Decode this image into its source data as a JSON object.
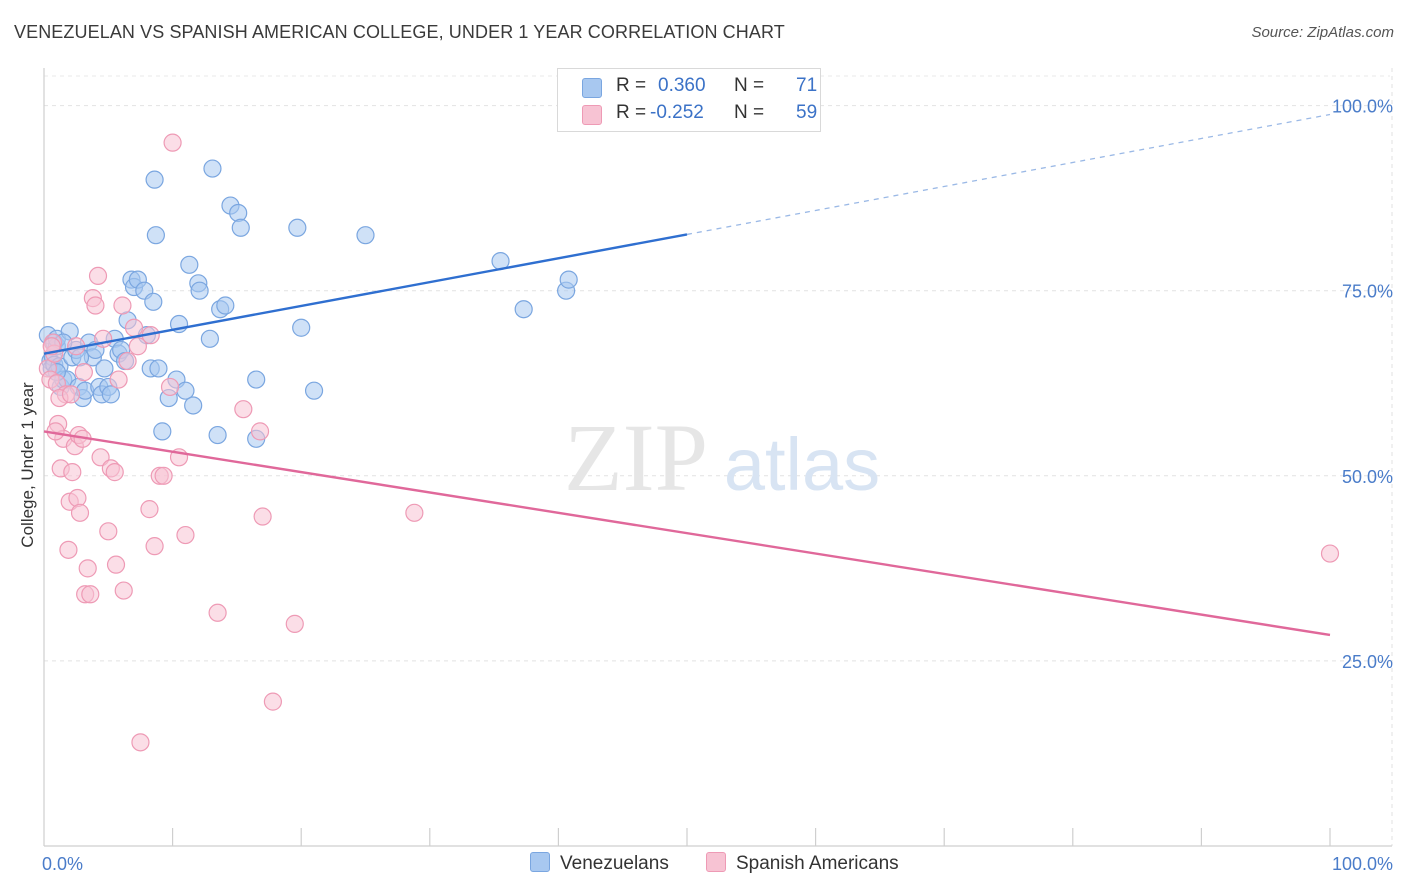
{
  "header": {
    "title": "VENEZUELAN VS SPANISH AMERICAN COLLEGE, UNDER 1 YEAR CORRELATION CHART",
    "source": "Source: ZipAtlas.com"
  },
  "watermark": {
    "zip": "ZIP",
    "atlas": "atlas"
  },
  "legend": {
    "rows": [
      {
        "r_label": "R =",
        "r_value": "0.360",
        "n_label": "N =",
        "n_value": "71",
        "color": "#a8c8f0",
        "border": "#7aa6e0"
      },
      {
        "r_label": "R =",
        "r_value": "-0.252",
        "n_label": "N =",
        "n_value": "59",
        "color": "#f7c3d3",
        "border": "#ee9ab5"
      }
    ]
  },
  "bottom_legend": {
    "items": [
      {
        "label": "Venezuelans",
        "color": "#a8c8f0",
        "border": "#7aa6e0"
      },
      {
        "label": "Spanish Americans",
        "color": "#f7c3d3",
        "border": "#ee9ab5"
      }
    ]
  },
  "chart_data": {
    "type": "scatter",
    "title": "VENEZUELAN VS SPANISH AMERICAN COLLEGE, UNDER 1 YEAR CORRELATION CHART",
    "xlabel": "",
    "ylabel": "College, Under 1 year",
    "xlim": [
      0,
      100
    ],
    "ylim": [
      0,
      104
    ],
    "x_tick_labels": [
      "0.0%",
      "100.0%"
    ],
    "y_ticks": [
      25,
      50,
      75,
      100
    ],
    "y_tick_labels": [
      "25.0%",
      "50.0%",
      "75.0%",
      "100.0%"
    ],
    "grid": true,
    "series": [
      {
        "name": "Venezuelans",
        "color": "#7aa6e0",
        "fill": "#a8c8f0",
        "line_color": "#2f6fd0",
        "trend": {
          "x0": 0,
          "y0": 66.5,
          "x1": 50,
          "y1": 82.6,
          "dash_to_x": 100,
          "dash_to_y": 98.8
        },
        "points": [
          [
            0.3,
            69
          ],
          [
            0.5,
            65.5
          ],
          [
            0.6,
            64.5
          ],
          [
            0.7,
            66
          ],
          [
            0.8,
            68
          ],
          [
            0.8,
            65
          ],
          [
            1.0,
            67.5
          ],
          [
            1.0,
            68.5
          ],
          [
            1.2,
            64.8
          ],
          [
            1.3,
            62
          ],
          [
            1.5,
            63
          ],
          [
            1.8,
            63
          ],
          [
            2.0,
            69.5
          ],
          [
            2.2,
            66
          ],
          [
            2.5,
            67
          ],
          [
            2.7,
            62
          ],
          [
            3.0,
            60.5
          ],
          [
            3.2,
            61.5
          ],
          [
            3.5,
            68
          ],
          [
            3.8,
            66
          ],
          [
            4.0,
            67
          ],
          [
            4.3,
            62
          ],
          [
            4.5,
            61
          ],
          [
            4.7,
            64.5
          ],
          [
            5.0,
            62
          ],
          [
            5.2,
            61
          ],
          [
            5.5,
            68.5
          ],
          [
            5.8,
            66.5
          ],
          [
            6.0,
            67
          ],
          [
            6.3,
            65.5
          ],
          [
            6.5,
            71
          ],
          [
            6.8,
            76.5
          ],
          [
            7.0,
            75.5
          ],
          [
            7.3,
            76.5
          ],
          [
            7.8,
            75
          ],
          [
            8.0,
            69
          ],
          [
            8.3,
            64.5
          ],
          [
            8.5,
            73.5
          ],
          [
            8.6,
            90
          ],
          [
            8.7,
            82.5
          ],
          [
            8.9,
            64.5
          ],
          [
            9.2,
            56
          ],
          [
            9.7,
            60.5
          ],
          [
            10.3,
            63
          ],
          [
            10.5,
            70.5
          ],
          [
            11.0,
            61.5
          ],
          [
            11.3,
            78.5
          ],
          [
            11.6,
            59.5
          ],
          [
            12.0,
            76
          ],
          [
            12.1,
            75
          ],
          [
            12.9,
            68.5
          ],
          [
            13.1,
            91.5
          ],
          [
            13.5,
            55.5
          ],
          [
            13.7,
            72.5
          ],
          [
            14.1,
            73
          ],
          [
            14.5,
            86.5
          ],
          [
            15.1,
            85.5
          ],
          [
            15.3,
            83.5
          ],
          [
            16.5,
            55
          ],
          [
            16.5,
            63
          ],
          [
            19.7,
            83.5
          ],
          [
            20.0,
            70
          ],
          [
            21.0,
            61.5
          ],
          [
            25.0,
            82.5
          ],
          [
            35.5,
            79
          ],
          [
            37.3,
            72.5
          ],
          [
            40.6,
            75
          ],
          [
            40.8,
            76.5
          ],
          [
            1.0,
            64
          ],
          [
            1.5,
            68
          ],
          [
            2.8,
            66
          ]
        ]
      },
      {
        "name": "Spanish Americans",
        "color": "#ee9ab5",
        "fill": "#f7c3d3",
        "line_color": "#e0689a",
        "trend": {
          "x0": 0,
          "y0": 56,
          "x1": 100,
          "y1": 28.5
        },
        "points": [
          [
            0.3,
            64.5
          ],
          [
            0.5,
            63
          ],
          [
            0.7,
            68
          ],
          [
            0.8,
            66.5
          ],
          [
            1.0,
            62.5
          ],
          [
            1.1,
            57
          ],
          [
            1.3,
            51
          ],
          [
            1.5,
            55
          ],
          [
            1.7,
            61
          ],
          [
            1.9,
            40
          ],
          [
            2.0,
            46.5
          ],
          [
            2.2,
            50.5
          ],
          [
            2.4,
            54
          ],
          [
            2.5,
            67.5
          ],
          [
            2.6,
            47
          ],
          [
            2.7,
            55.5
          ],
          [
            2.8,
            45
          ],
          [
            3.0,
            55
          ],
          [
            3.2,
            34
          ],
          [
            3.4,
            37.5
          ],
          [
            3.6,
            34
          ],
          [
            3.8,
            74
          ],
          [
            4.0,
            73
          ],
          [
            4.2,
            77
          ],
          [
            4.4,
            52.5
          ],
          [
            4.6,
            68.5
          ],
          [
            5.0,
            42.5
          ],
          [
            5.2,
            51
          ],
          [
            5.5,
            50.5
          ],
          [
            5.6,
            38
          ],
          [
            5.8,
            63
          ],
          [
            6.1,
            73
          ],
          [
            6.2,
            34.5
          ],
          [
            6.5,
            65.5
          ],
          [
            7.0,
            70
          ],
          [
            7.3,
            67.5
          ],
          [
            7.5,
            14
          ],
          [
            8.2,
            45.5
          ],
          [
            8.3,
            69
          ],
          [
            8.6,
            40.5
          ],
          [
            9.0,
            50
          ],
          [
            9.3,
            50
          ],
          [
            9.8,
            62
          ],
          [
            10.0,
            95
          ],
          [
            10.5,
            52.5
          ],
          [
            11.0,
            42
          ],
          [
            13.5,
            31.5
          ],
          [
            15.5,
            59
          ],
          [
            16.8,
            56
          ],
          [
            17.0,
            44.5
          ],
          [
            17.8,
            19.5
          ],
          [
            19.5,
            30
          ],
          [
            28.8,
            45
          ],
          [
            100,
            39.5
          ],
          [
            0.6,
            67.5
          ],
          [
            1.2,
            60.5
          ],
          [
            2.1,
            61
          ],
          [
            3.1,
            64
          ],
          [
            0.9,
            56
          ]
        ]
      }
    ]
  }
}
